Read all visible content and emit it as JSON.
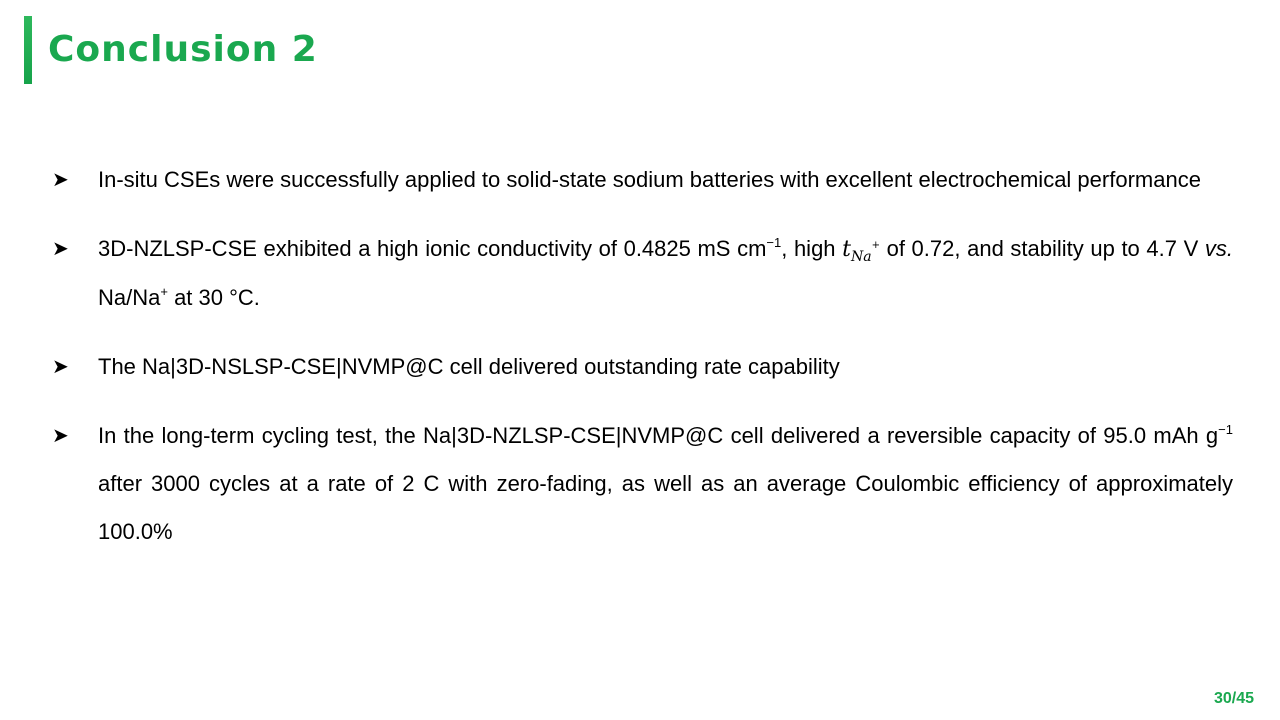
{
  "slide": {
    "title": "Conclusion 2",
    "accent_color": "#1aa84f",
    "page_number": "30/45"
  },
  "bullets": [
    {
      "marker_icon": "arrowhead-bullet-icon",
      "text": "In-situ CSEs were successfully applied to solid-state sodium batteries with excellent electrochemical performance"
    },
    {
      "marker_icon": "arrowhead-bullet-icon",
      "part1": "3D-NZLSP-CSE exhibited a high ionic conductivity of 0.4825 mS cm",
      "sup1": "−1",
      "part2": ", high ",
      "math_t": "t",
      "math_sub": "Na",
      "math_sup": "+",
      "part3": " of 0.72, and stability up to 4.7 V ",
      "vs": "vs.",
      "part4": " Na/Na",
      "sup2": "+",
      "part5": " at 30 °C."
    },
    {
      "marker_icon": "arrowhead-bullet-icon",
      "text": "The Na|3D-NSLSP-CSE|NVMP@C cell delivered outstanding rate capability"
    },
    {
      "marker_icon": "arrowhead-bullet-icon",
      "part1": "In the long-term cycling test, the Na|3D-NZLSP-CSE|NVMP@C cell delivered a reversible capacity of 95.0 mAh g",
      "sup1": "−1",
      "part2": " after 3000 cycles at a rate of 2 C with zero-fading, as well as an average Coulombic efficiency of approximately 100.0%"
    }
  ]
}
